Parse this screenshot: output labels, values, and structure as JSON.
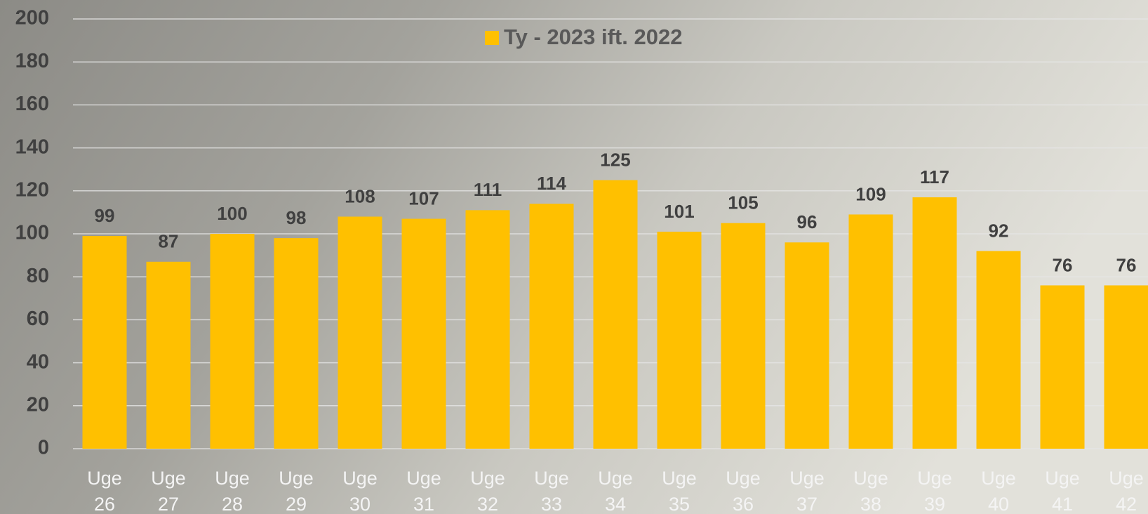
{
  "chart_data": {
    "type": "bar",
    "categories": [
      "Uge 26",
      "Uge 27",
      "Uge 28",
      "Uge 29",
      "Uge 30",
      "Uge 31",
      "Uge 32",
      "Uge 33",
      "Uge 34",
      "Uge 35",
      "Uge 36",
      "Uge 37",
      "Uge 38",
      "Uge 39",
      "Uge 40",
      "Uge 41",
      "Uge 42"
    ],
    "series": [
      {
        "name": "Ty - 2023 ift. 2022",
        "color": "#ffc000",
        "values": [
          99,
          87,
          100,
          98,
          108,
          107,
          111,
          114,
          125,
          101,
          105,
          96,
          109,
          117,
          92,
          76,
          76
        ]
      }
    ],
    "ylim": [
      0,
      200
    ],
    "yticks": [
      0,
      20,
      40,
      60,
      80,
      100,
      120,
      140,
      160,
      180,
      200
    ],
    "grid": true,
    "legend": "top"
  }
}
